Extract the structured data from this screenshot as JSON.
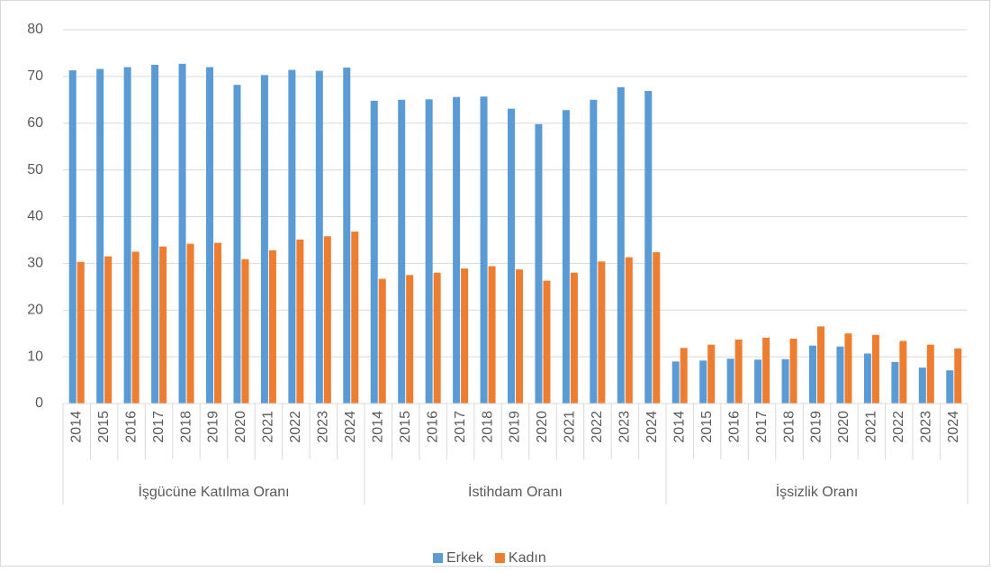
{
  "chart_data": {
    "type": "bar",
    "categories": [
      "2014",
      "2015",
      "2016",
      "2017",
      "2018",
      "2019",
      "2020",
      "2021",
      "2022",
      "2023",
      "2024",
      "2014",
      "2015",
      "2016",
      "2017",
      "2018",
      "2019",
      "2020",
      "2021",
      "2022",
      "2023",
      "2024",
      "2014",
      "2015",
      "2016",
      "2017",
      "2018",
      "2019",
      "2020",
      "2021",
      "2022",
      "2023",
      "2024"
    ],
    "group_labels": [
      "İşgücüne Katılma Oranı",
      "İstihdam Oranı",
      "İşsizlik Oranı"
    ],
    "series": [
      {
        "name": "Erkek",
        "color": "#5b9bd5",
        "values": [
          71.3,
          71.6,
          72.0,
          72.5,
          72.7,
          72.0,
          68.2,
          70.3,
          71.4,
          71.2,
          71.9,
          64.8,
          65.0,
          65.1,
          65.6,
          65.7,
          63.1,
          59.8,
          62.8,
          65.0,
          67.7,
          66.9,
          9.0,
          9.2,
          9.6,
          9.4,
          9.5,
          12.4,
          12.2,
          10.7,
          8.9,
          7.7,
          7.1
        ]
      },
      {
        "name": "Kadın",
        "color": "#ed7d31",
        "values": [
          30.3,
          31.5,
          32.5,
          33.6,
          34.2,
          34.4,
          30.9,
          32.8,
          35.1,
          35.8,
          36.8,
          26.7,
          27.5,
          28.0,
          28.9,
          29.4,
          28.7,
          26.3,
          28.0,
          30.4,
          31.3,
          32.4,
          11.9,
          12.6,
          13.7,
          14.1,
          13.9,
          16.5,
          15.0,
          14.7,
          13.4,
          12.6,
          11.8
        ]
      }
    ],
    "ylim": [
      0,
      80
    ],
    "yticks": [
      0,
      10,
      20,
      30,
      40,
      50,
      60,
      70,
      80
    ],
    "grid": true,
    "legend": "bottom"
  }
}
